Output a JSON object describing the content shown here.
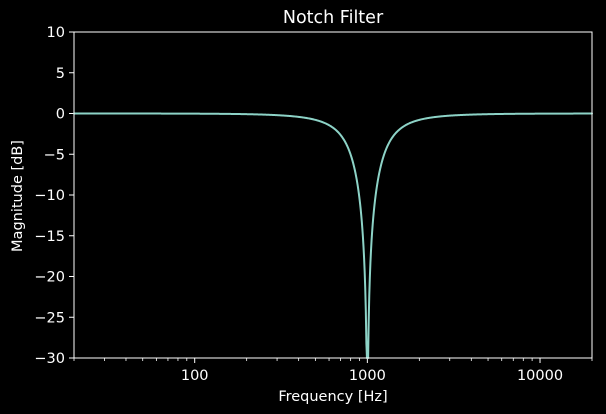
{
  "chart_data": {
    "type": "line",
    "title": "Notch Filter",
    "xlabel": "Frequency [Hz]",
    "ylabel": "Magnitude [dB]",
    "x_scale": "log",
    "xlim": [
      20,
      20000
    ],
    "ylim": [
      -30,
      10
    ],
    "x_ticks": [
      {
        "value": 100,
        "label": "100"
      },
      {
        "value": 1000,
        "label": "1000"
      },
      {
        "value": 10000,
        "label": "10000"
      }
    ],
    "y_ticks": [
      {
        "value": 10,
        "label": "10"
      },
      {
        "value": 5,
        "label": "5"
      },
      {
        "value": 0,
        "label": "0"
      },
      {
        "value": -5,
        "label": "−5"
      },
      {
        "value": -10,
        "label": "−10"
      },
      {
        "value": -15,
        "label": "−15"
      },
      {
        "value": -20,
        "label": "−20"
      },
      {
        "value": -25,
        "label": "−25"
      },
      {
        "value": -30,
        "label": "−30"
      }
    ],
    "grid": false,
    "legend": "none",
    "series": [
      {
        "center_frequency": 1000,
        "q": 1.5,
        "color": "#8dd3c7",
        "x": [
          20,
          50,
          100,
          200,
          300,
          400,
          500,
          600,
          700,
          800,
          850,
          900,
          950,
          980,
          1000,
          1020,
          1050,
          1100,
          1200,
          1300,
          1500,
          2000,
          3000,
          5000,
          10000,
          20000
        ],
        "y": [
          0.0,
          -0.01,
          -0.04,
          -0.2,
          -0.5,
          -0.9,
          -1.5,
          -2.3,
          -3.5,
          -5.6,
          -7.3,
          -10.0,
          -15.8,
          -23.9,
          -30,
          -24.1,
          -16.5,
          -11.3,
          -6.3,
          -4.0,
          -2.2,
          -0.8,
          -0.25,
          -0.08,
          -0.02,
          0.0
        ]
      }
    ],
    "colors": {
      "background": "#000000",
      "axes": "#ffffff",
      "text": "#ffffff",
      "line": "#8dd3c7"
    }
  }
}
